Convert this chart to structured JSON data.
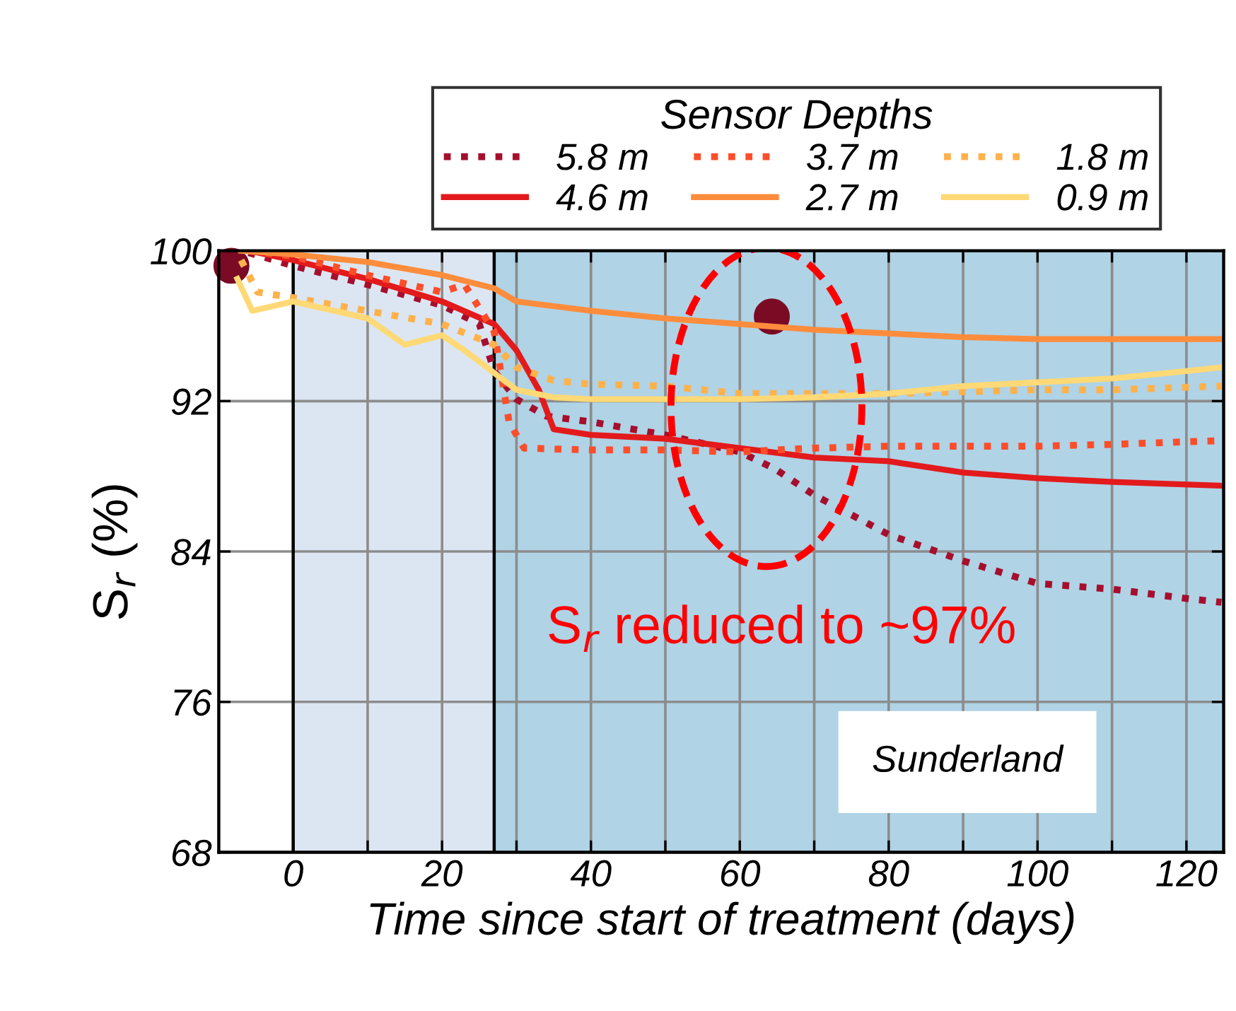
{
  "chart_data": {
    "type": "line",
    "xlabel": "Time since start of treatment (days)",
    "ylabel": "S$_{r}$ (%)",
    "legend_title": "Sensor Depths",
    "legend": "top",
    "xlim": [
      -10,
      125
    ],
    "ylim": [
      68,
      100
    ],
    "xticks": [
      0,
      {
        "value": 10,
        "label": null
      },
      20,
      {
        "value": 30,
        "label": null
      },
      40,
      {
        "value": 50,
        "label": null
      },
      60,
      {
        "value": 70,
        "label": null
      },
      80,
      {
        "value": 90,
        "label": null
      },
      100,
      {
        "value": 110,
        "label": null
      },
      120
    ],
    "yticks": [
      68,
      76,
      84,
      92,
      100
    ],
    "grid": true,
    "bands": [
      {
        "axis": "x",
        "from": 0,
        "to": 27,
        "color": "#dce6f2"
      },
      {
        "axis": "x",
        "from": 27,
        "to": 125,
        "color": "#b0d3e6"
      }
    ],
    "ref_lines": [
      {
        "axis": "x",
        "value": 0,
        "color": "#000000"
      },
      {
        "axis": "x",
        "value": 27,
        "color": "#000000"
      }
    ],
    "series": [
      {
        "name": "5.8 m",
        "color": "#a50f2d",
        "line_style": "dotted",
        "x": [
          -6,
          0,
          10,
          20,
          25,
          27,
          30,
          34,
          40,
          50,
          60,
          64.7,
          70,
          80,
          90,
          100,
          110,
          120,
          124.7
        ],
        "values": [
          99.9,
          99.2,
          98.2,
          97.1,
          96.1,
          93.6,
          92.1,
          91.2,
          90.9,
          90.2,
          89.3,
          88.4,
          87.0,
          84.9,
          83.5,
          82.3,
          82.0,
          81.5,
          81.3
        ]
      },
      {
        "name": "4.6 m",
        "color": "#e31a1c",
        "line_style": "solid",
        "x": [
          -6,
          0,
          10,
          20,
          27,
          30,
          33,
          35,
          40,
          50,
          60,
          70,
          80,
          90,
          100,
          110,
          124.7
        ],
        "values": [
          100,
          99.5,
          98.5,
          97.3,
          96.1,
          94.7,
          92.6,
          90.5,
          90.2,
          90.0,
          89.5,
          89.0,
          88.8,
          88.2,
          87.9,
          87.7,
          87.5
        ]
      },
      {
        "name": "3.7 m",
        "color": "#fc4e2a",
        "line_style": "dotted",
        "x": [
          -6,
          0,
          10,
          20,
          23,
          27,
          29,
          31,
          40,
          50,
          60,
          70,
          80,
          90,
          100,
          110,
          124.7
        ],
        "values": [
          100,
          99.7,
          98.7,
          97.8,
          98.2,
          95.7,
          90.9,
          89.5,
          89.4,
          89.4,
          89.3,
          89.5,
          89.6,
          89.6,
          89.6,
          89.7,
          89.9
        ]
      },
      {
        "name": "2.7 m",
        "color": "#fd8d3c",
        "line_style": "solid",
        "x": [
          -7,
          0,
          10,
          20,
          27,
          30,
          40,
          50,
          60,
          70,
          80,
          90,
          100,
          110,
          124.7
        ],
        "values": [
          100,
          99.8,
          99.4,
          98.7,
          98.0,
          97.3,
          96.8,
          96.4,
          96.1,
          95.8,
          95.6,
          95.4,
          95.3,
          95.3,
          95.3
        ]
      },
      {
        "name": "1.8 m",
        "color": "#feb24c",
        "line_style": "dotted",
        "x": [
          -7,
          -4.8,
          0,
          10,
          20,
          27,
          30,
          35,
          40,
          50,
          60,
          70,
          80,
          90,
          100,
          110,
          124.7
        ],
        "values": [
          99.5,
          97.8,
          97.5,
          96.8,
          96.1,
          95.0,
          93.8,
          93.1,
          92.9,
          92.8,
          92.4,
          92.4,
          92.4,
          92.5,
          92.6,
          92.6,
          92.8
        ]
      },
      {
        "name": "0.9 m",
        "color": "#fed976",
        "line_style": "solid",
        "x": [
          -7.5,
          -5.5,
          0,
          10,
          15,
          20,
          23,
          27,
          30,
          35,
          40,
          50,
          60,
          70,
          80,
          90,
          100,
          110,
          120,
          124.7
        ],
        "values": [
          98.5,
          96.8,
          97.3,
          96.4,
          95.0,
          95.5,
          94.7,
          93.5,
          92.6,
          92.2,
          92.1,
          92.1,
          92.1,
          92.2,
          92.4,
          92.8,
          93.0,
          93.2,
          93.6,
          93.8
        ]
      },
      {
        "type": "scatter",
        "color": "#7b0a24",
        "marker": "circle",
        "x": [
          -8.3,
          64.3
        ],
        "values": [
          99.2,
          96.5
        ]
      }
    ],
    "annotations": [
      "S$_{r}$ reduced to ~97%",
      "Sunderland"
    ]
  }
}
